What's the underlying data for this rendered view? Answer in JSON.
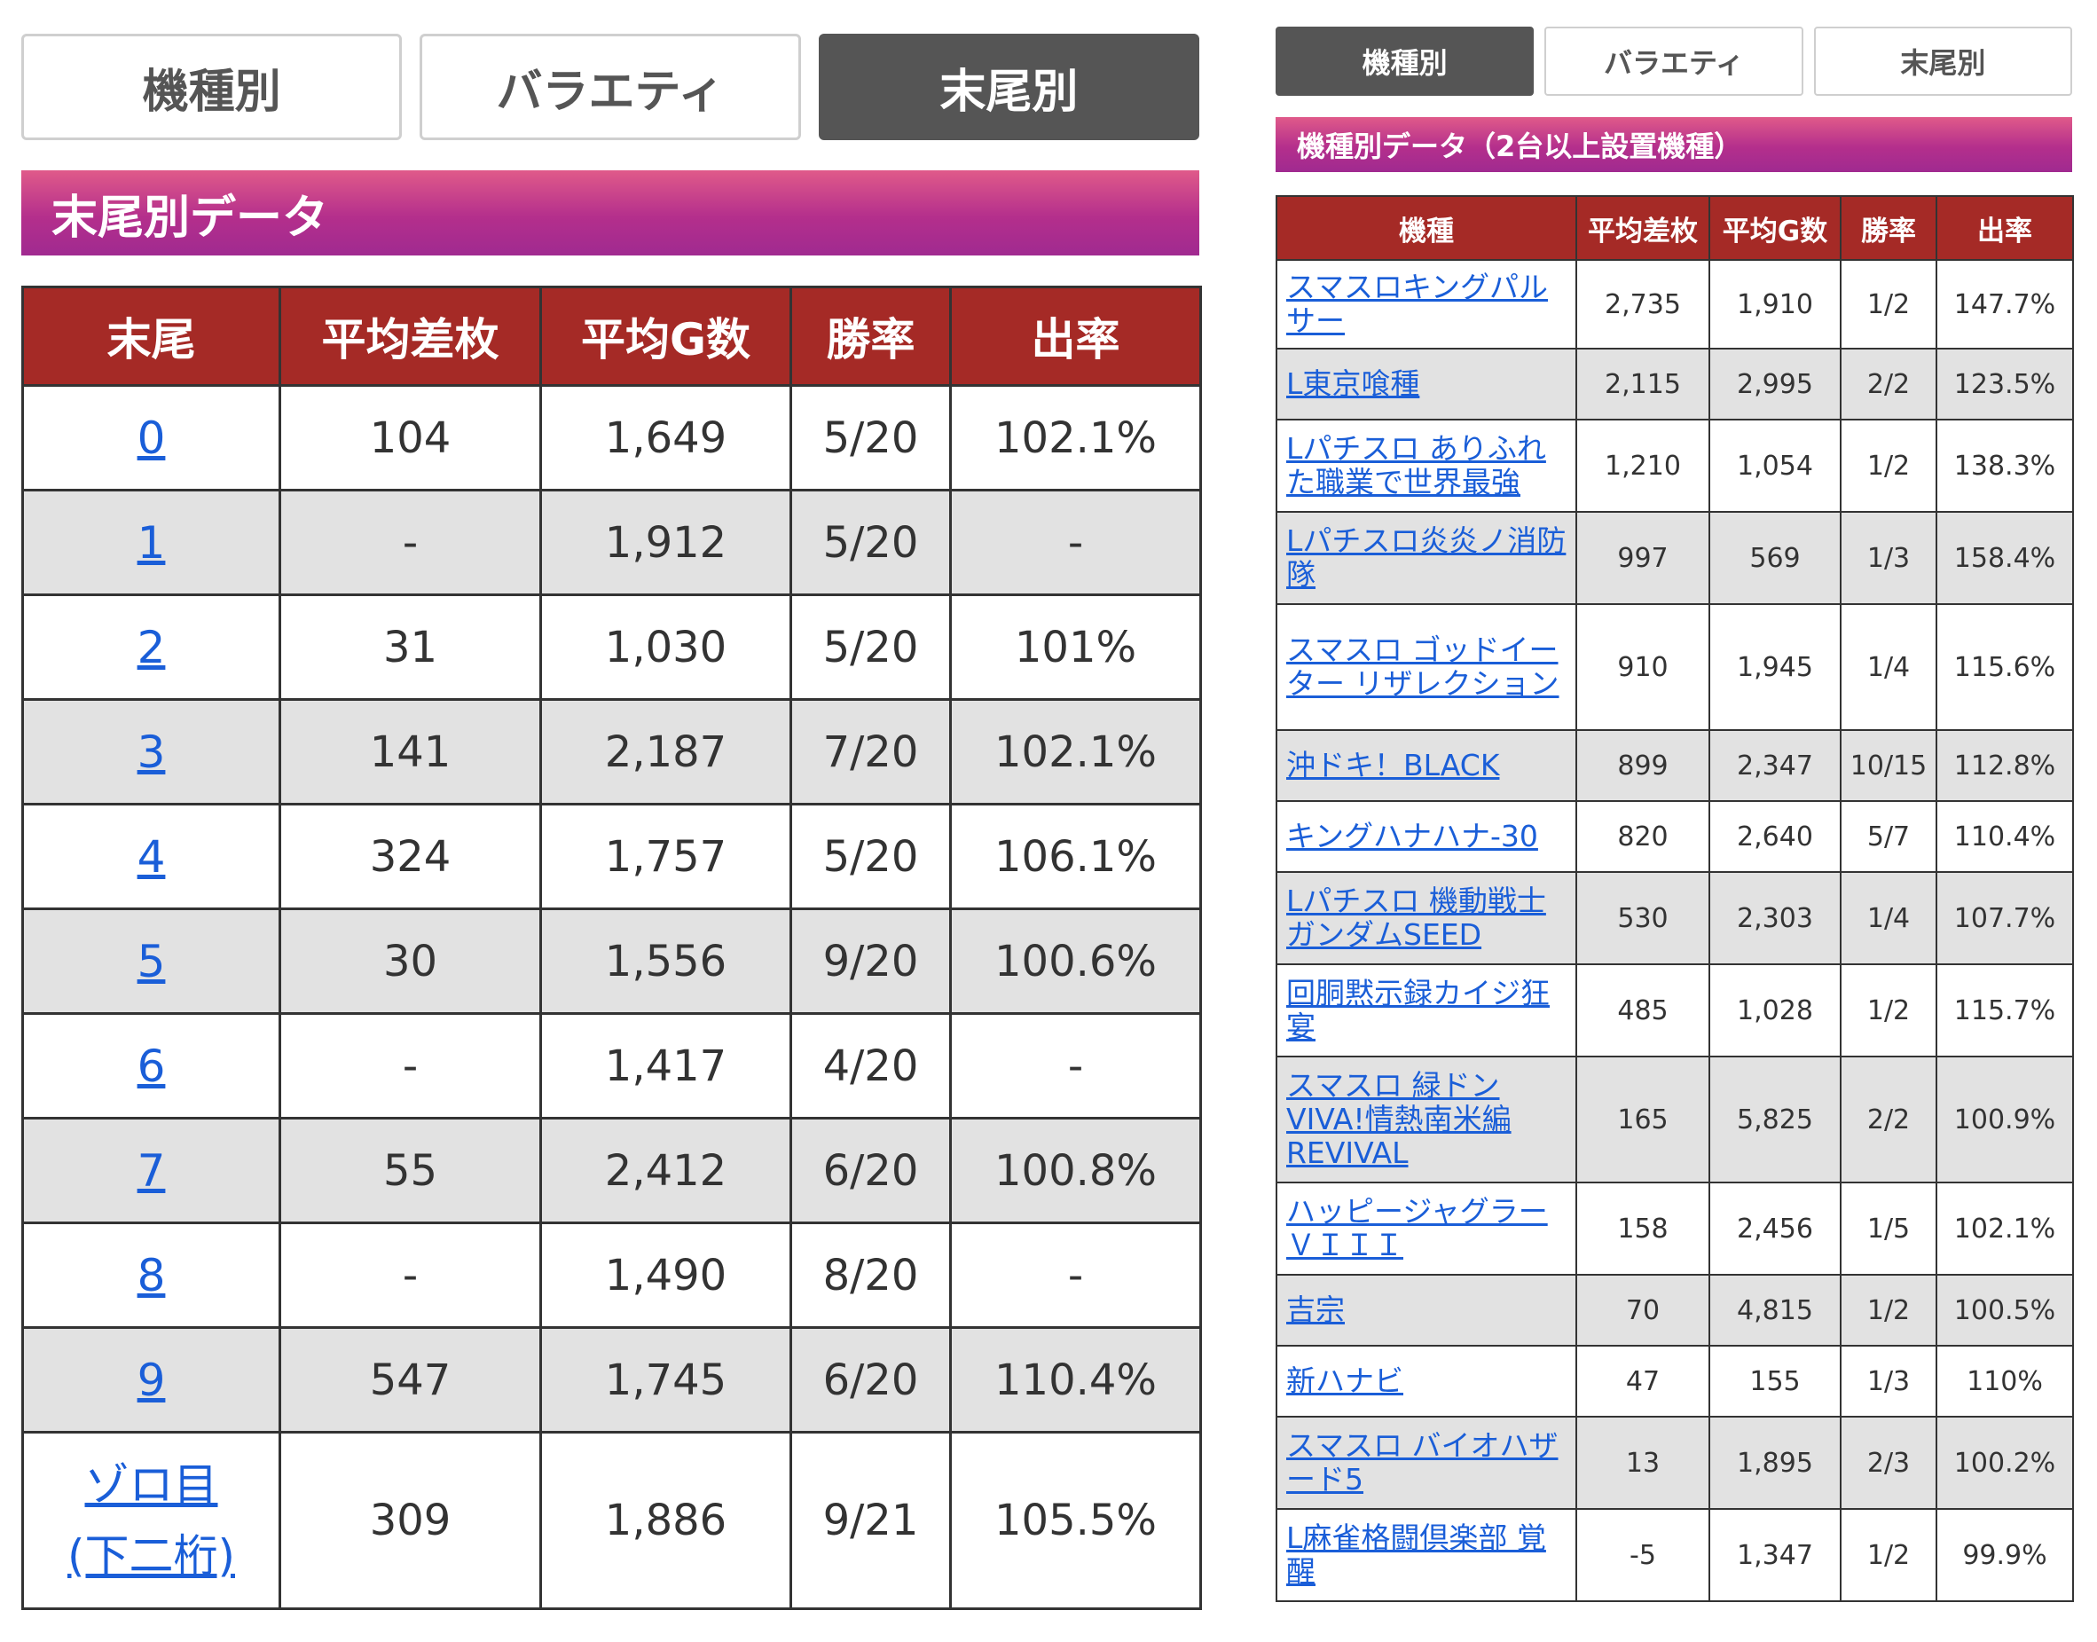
{
  "left": {
    "tabs": [
      {
        "label": "機種別",
        "active": false
      },
      {
        "label": "バラエティ",
        "active": false
      },
      {
        "label": "末尾別",
        "active": true
      }
    ],
    "banner": "末尾別データ",
    "headers": [
      "末尾",
      "平均差枚",
      "平均G数",
      "勝率",
      "出率"
    ],
    "rows": [
      {
        "tail": "0",
        "diff": "104",
        "games": "1,649",
        "win": "5/20",
        "rate": "102.1%"
      },
      {
        "tail": "1",
        "diff": "-",
        "games": "1,912",
        "win": "5/20",
        "rate": "-"
      },
      {
        "tail": "2",
        "diff": "31",
        "games": "1,030",
        "win": "5/20",
        "rate": "101%"
      },
      {
        "tail": "3",
        "diff": "141",
        "games": "2,187",
        "win": "7/20",
        "rate": "102.1%"
      },
      {
        "tail": "4",
        "diff": "324",
        "games": "1,757",
        "win": "5/20",
        "rate": "106.1%"
      },
      {
        "tail": "5",
        "diff": "30",
        "games": "1,556",
        "win": "9/20",
        "rate": "100.6%"
      },
      {
        "tail": "6",
        "diff": "-",
        "games": "1,417",
        "win": "4/20",
        "rate": "-"
      },
      {
        "tail": "7",
        "diff": "55",
        "games": "2,412",
        "win": "6/20",
        "rate": "100.8%"
      },
      {
        "tail": "8",
        "diff": "-",
        "games": "1,490",
        "win": "8/20",
        "rate": "-"
      },
      {
        "tail": "9",
        "diff": "547",
        "games": "1,745",
        "win": "6/20",
        "rate": "110.4%"
      },
      {
        "tail": "ゾロ目(下二桁)",
        "tail_line1": "ゾロ目",
        "tail_line2": "(下二桁)",
        "diff": "309",
        "games": "1,886",
        "win": "9/21",
        "rate": "105.5%"
      }
    ]
  },
  "right": {
    "tabs": [
      {
        "label": "機種別",
        "active": true
      },
      {
        "label": "バラエティ",
        "active": false
      },
      {
        "label": "末尾別",
        "active": false
      }
    ],
    "banner": "機種別データ（2台以上設置機種）",
    "headers": [
      "機種",
      "平均差枚",
      "平均G数",
      "勝率",
      "出率"
    ],
    "rows": [
      {
        "name": "スマスロキングパルサー",
        "diff": "2,735",
        "games": "1,910",
        "win": "1/2",
        "rate": "147.7%"
      },
      {
        "name": "L東京喰種",
        "diff": "2,115",
        "games": "2,995",
        "win": "2/2",
        "rate": "123.5%"
      },
      {
        "name": "Lパチスロ ありふれた職業で世界最強",
        "diff": "1,210",
        "games": "1,054",
        "win": "1/2",
        "rate": "138.3%"
      },
      {
        "name": "Lパチスロ炎炎ノ消防隊",
        "diff": "997",
        "games": "569",
        "win": "1/3",
        "rate": "158.4%"
      },
      {
        "name": "スマスロ ゴッドイーター リザレクション",
        "diff": "910",
        "games": "1,945",
        "win": "1/4",
        "rate": "115.6%"
      },
      {
        "name": "沖ドキ！BLACK",
        "diff": "899",
        "games": "2,347",
        "win": "10/15",
        "rate": "112.8%"
      },
      {
        "name": "キングハナハナ-30",
        "diff": "820",
        "games": "2,640",
        "win": "5/7",
        "rate": "110.4%"
      },
      {
        "name": "Lパチスロ 機動戦士ガンダムSEED",
        "diff": "530",
        "games": "2,303",
        "win": "1/4",
        "rate": "107.7%"
      },
      {
        "name": "回胴黙示録カイジ狂宴",
        "diff": "485",
        "games": "1,028",
        "win": "1/2",
        "rate": "115.7%"
      },
      {
        "name": "スマスロ 緑ドンVIVA!情熱南米編REVIVAL",
        "diff": "165",
        "games": "5,825",
        "win": "2/2",
        "rate": "100.9%"
      },
      {
        "name": "ハッピージャグラーＶＩＩＩ",
        "diff": "158",
        "games": "2,456",
        "win": "1/5",
        "rate": "102.1%"
      },
      {
        "name": "吉宗",
        "diff": "70",
        "games": "4,815",
        "win": "1/2",
        "rate": "100.5%"
      },
      {
        "name": "新ハナビ",
        "diff": "47",
        "games": "155",
        "win": "1/3",
        "rate": "110%"
      },
      {
        "name": "スマスロ バイオハザード5",
        "diff": "13",
        "games": "1,895",
        "win": "2/3",
        "rate": "100.2%"
      },
      {
        "name": "L麻雀格闘倶楽部 覚醒",
        "diff": "-5",
        "games": "1,347",
        "win": "1/2",
        "rate": "99.9%"
      }
    ]
  }
}
